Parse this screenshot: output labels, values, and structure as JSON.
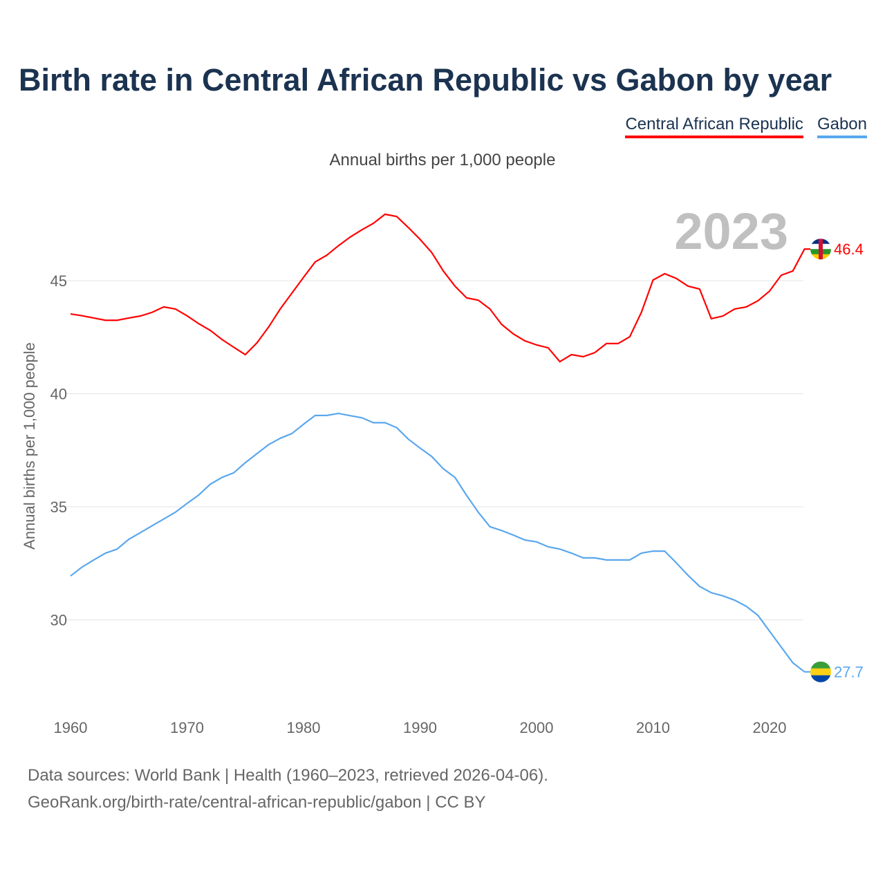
{
  "title": "Birth rate in Central African Republic vs Gabon by year",
  "subtitle": "Annual births per 1,000 people",
  "year_label": "2023",
  "sources": "Data sources: World Bank | Health (1960–2023, retrieved 2026-04-06).",
  "url": "GeoRank.org/birth-rate/central-african-republic/gabon | CC BY",
  "chart_data": {
    "type": "line",
    "title": "Birth rate in Central African Republic vs Gabon by year",
    "ylabel": "Annual births per 1,000 people",
    "xlabel": "",
    "xlim": [
      1960,
      2023
    ],
    "ylim": [
      26.5,
      49.5
    ],
    "xticks": [
      1960,
      1970,
      1980,
      1990,
      2000,
      2010,
      2020
    ],
    "yticks": [
      30,
      35,
      40,
      45
    ],
    "grid": true,
    "legend": "top-right",
    "series": [
      {
        "name": "Central African Republic",
        "color": "#ff0000",
        "end_label": "46.4",
        "values": [
          43.53,
          43.45,
          43.35,
          43.25,
          43.25,
          43.35,
          43.44,
          43.6,
          43.84,
          43.75,
          43.45,
          43.1,
          42.8,
          42.4,
          42.06,
          41.73,
          42.25,
          42.95,
          43.75,
          44.45,
          45.15,
          45.83,
          46.13,
          46.55,
          46.93,
          47.25,
          47.54,
          47.94,
          47.84,
          47.35,
          46.83,
          46.25,
          45.43,
          44.76,
          44.24,
          44.14,
          43.75,
          43.07,
          42.65,
          42.34,
          42.16,
          42.03,
          41.42,
          41.73,
          41.64,
          41.82,
          42.22,
          42.22,
          42.52,
          43.6,
          45.03,
          45.31,
          45.1,
          44.76,
          44.63,
          43.32,
          43.44,
          43.75,
          43.84,
          44.11,
          44.54,
          45.24,
          45.43,
          46.4
        ]
      },
      {
        "name": "Gabon",
        "color": "#5aa7ee",
        "end_label": "27.7",
        "values": [
          31.94,
          32.34,
          32.65,
          32.95,
          33.13,
          33.56,
          33.86,
          34.16,
          34.46,
          34.76,
          35.15,
          35.52,
          36.0,
          36.3,
          36.5,
          36.95,
          37.35,
          37.75,
          38.03,
          38.24,
          38.65,
          39.04,
          39.04,
          39.13,
          39.03,
          38.94,
          38.72,
          38.72,
          38.5,
          37.99,
          37.6,
          37.23,
          36.68,
          36.3,
          35.5,
          34.76,
          34.12,
          33.95,
          33.75,
          33.53,
          33.45,
          33.23,
          33.13,
          32.95,
          32.74,
          32.74,
          32.65,
          32.65,
          32.65,
          32.95,
          33.04,
          33.04,
          32.52,
          31.97,
          31.48,
          31.2,
          31.06,
          30.87,
          30.6,
          30.2,
          29.5,
          28.8,
          28.1,
          27.7
        ]
      }
    ]
  }
}
